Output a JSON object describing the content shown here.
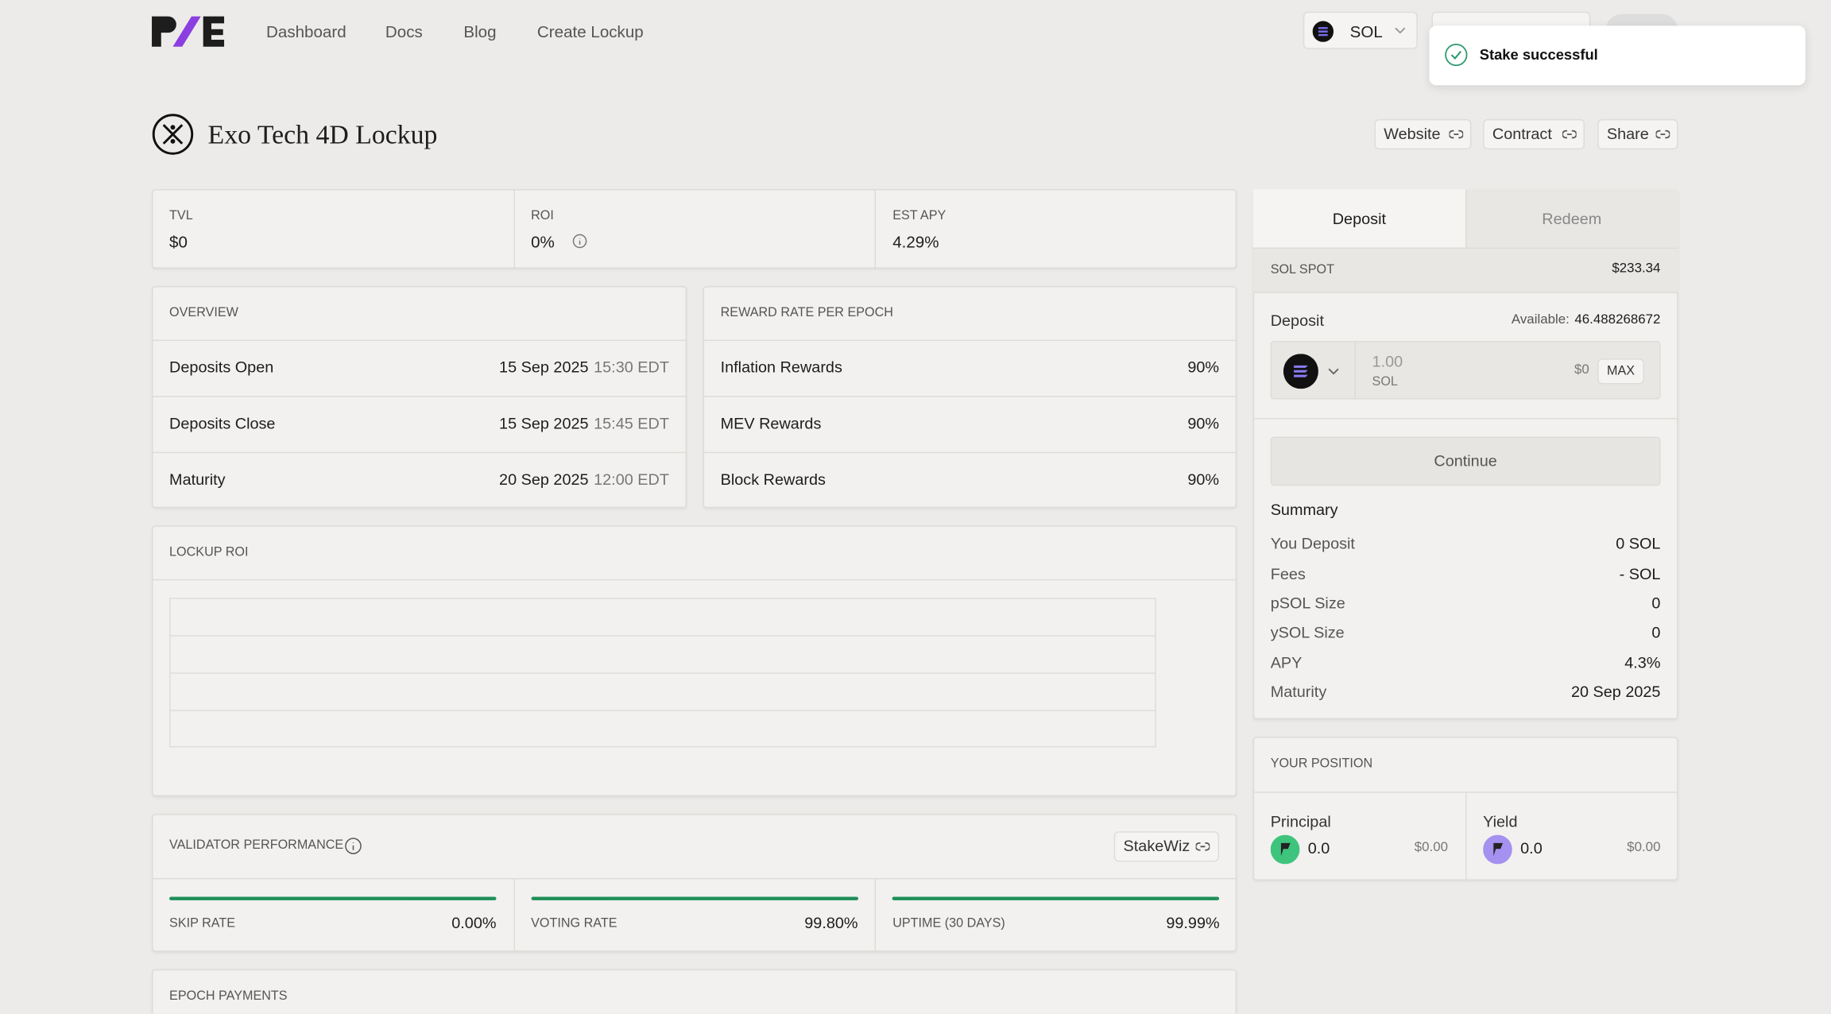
{
  "nav": {
    "links": [
      "Dashboard",
      "Docs",
      "Blog",
      "Create Lockup"
    ],
    "network": "SOL"
  },
  "toast": "Stake successful",
  "header": {
    "title": "Exo Tech 4D Lockup",
    "links": [
      "Website",
      "Contract",
      "Share"
    ]
  },
  "stats": [
    {
      "label": "TVL",
      "value": "$0"
    },
    {
      "label": "ROI",
      "value": "0%"
    },
    {
      "label": "EST APY",
      "value": "4.29%"
    }
  ],
  "overview": {
    "title": "OVERVIEW",
    "rows": [
      {
        "label": "Deposits Open",
        "date": "15 Sep 2025",
        "time": "15:30 EDT"
      },
      {
        "label": "Deposits Close",
        "date": "15 Sep 2025",
        "time": "15:45 EDT"
      },
      {
        "label": "Maturity",
        "date": "20 Sep 2025",
        "time": "12:00 EDT"
      }
    ]
  },
  "reward": {
    "title": "REWARD RATE PER EPOCH",
    "rows": [
      {
        "label": "Inflation Rewards",
        "value": "90%"
      },
      {
        "label": "MEV Rewards",
        "value": "90%"
      },
      {
        "label": "Block Rewards",
        "value": "90%"
      }
    ]
  },
  "lockup_roi": {
    "title": "LOCKUP ROI"
  },
  "validator": {
    "title": "VALIDATOR PERFORMANCE",
    "link": "StakeWiz",
    "metrics": [
      {
        "label": "SKIP RATE",
        "value": "0.00%"
      },
      {
        "label": "VOTING RATE",
        "value": "99.80%"
      },
      {
        "label": "UPTIME (30 DAYS)",
        "value": "99.99%"
      }
    ]
  },
  "epoch_payments": {
    "title": "EPOCH PAYMENTS"
  },
  "panel": {
    "tabs": [
      "Deposit",
      "Redeem"
    ],
    "spot_label": "SOL SPOT",
    "spot_value": "$233.34",
    "deposit_label": "Deposit",
    "available_label": "Available:",
    "available": "46.488268672",
    "amount": "1.00",
    "unit": "SOL",
    "usd": "$0",
    "max": "MAX",
    "continue": "Continue",
    "summary_title": "Summary",
    "summary": [
      {
        "label": "You Deposit",
        "value": "0 SOL"
      },
      {
        "label": "Fees",
        "value": "- SOL"
      },
      {
        "label": "pSOL Size",
        "value": "0"
      },
      {
        "label": "ySOL Size",
        "value": "0"
      },
      {
        "label": "APY",
        "value": "4.3%"
      },
      {
        "label": "Maturity",
        "value": "20 Sep 2025"
      }
    ]
  },
  "position": {
    "title": "YOUR POSITION",
    "items": [
      {
        "label": "Principal",
        "amount": "0.0",
        "usd": "$0.00"
      },
      {
        "label": "Yield",
        "amount": "0.0",
        "usd": "$0.00"
      }
    ]
  }
}
